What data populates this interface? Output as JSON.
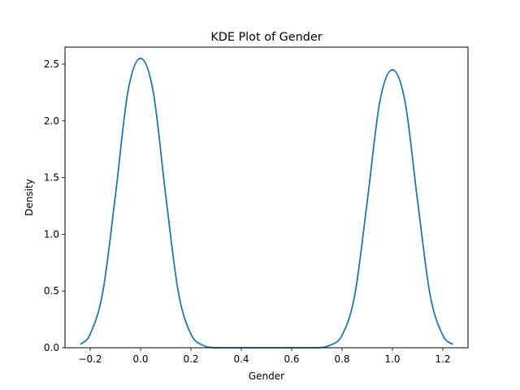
{
  "chart_data": {
    "type": "line",
    "title": "KDE Plot of Gender",
    "xlabel": "Gender",
    "ylabel": "Density",
    "xlim": [
      -0.3,
      1.3
    ],
    "ylim": [
      0.0,
      2.65
    ],
    "xticks": [
      -0.2,
      0.0,
      0.2,
      0.4,
      0.6,
      0.8,
      1.0,
      1.2
    ],
    "xtick_labels": [
      "−0.2",
      "0.0",
      "0.2",
      "0.4",
      "0.6",
      "0.8",
      "1.0",
      "1.2"
    ],
    "yticks": [
      0.0,
      0.5,
      1.0,
      1.5,
      2.0,
      2.5
    ],
    "ytick_labels": [
      "0.0",
      "0.5",
      "1.0",
      "1.5",
      "2.0",
      "2.5"
    ],
    "grid": false,
    "series": [
      {
        "color": "#1f77b4",
        "x": [
          -0.24,
          -0.2,
          -0.15,
          -0.1,
          -0.05,
          0.0,
          0.05,
          0.1,
          0.15,
          0.2,
          0.25,
          0.3,
          0.4,
          0.5,
          0.6,
          0.7,
          0.75,
          0.8,
          0.85,
          0.9,
          0.95,
          1.0,
          1.05,
          1.1,
          1.15,
          1.2,
          1.24
        ],
        "y": [
          0.03,
          0.12,
          0.49,
          1.34,
          2.26,
          2.55,
          2.26,
          1.34,
          0.49,
          0.12,
          0.02,
          0.0,
          0.0,
          0.0,
          0.0,
          0.0,
          0.02,
          0.11,
          0.46,
          1.29,
          2.17,
          2.45,
          2.17,
          1.29,
          0.46,
          0.11,
          0.03
        ]
      }
    ]
  }
}
